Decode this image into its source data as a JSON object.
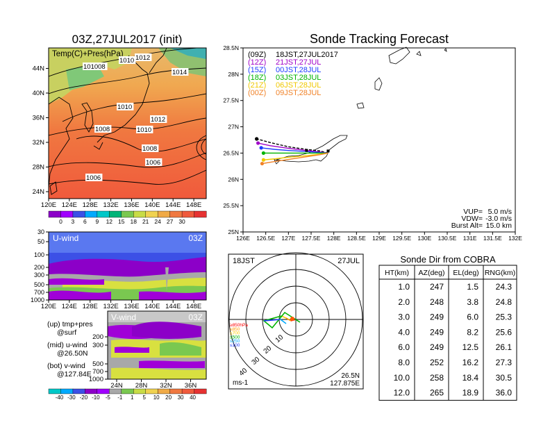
{
  "map_panel": {
    "title": "03Z,27JUL2017 (init)",
    "label": "Temp(C)+Pres(hPa)",
    "x_ticks": [
      "120E",
      "124E",
      "128E",
      "132E",
      "136E",
      "140E",
      "144E",
      "148E"
    ],
    "y_ticks": [
      "24N",
      "28N",
      "32N",
      "36N",
      "40N",
      "44N"
    ],
    "isobar_labels": [
      "101008",
      "1010",
      "1012",
      "1014",
      "1010",
      "1012",
      "1008",
      "1010",
      "1008",
      "1006",
      "1006"
    ],
    "colorbar_ticks": [
      "0",
      "3",
      "6",
      "9",
      "12",
      "15",
      "18",
      "21",
      "24",
      "27",
      "30"
    ]
  },
  "u_panel": {
    "label": "U-wind",
    "time": "03Z",
    "y_ticks": [
      "30",
      "50",
      "100",
      "200",
      "300",
      "500",
      "700",
      "1000"
    ],
    "x_ticks": [
      "120E",
      "124E",
      "128E",
      "132E",
      "136E",
      "140E",
      "144E",
      "148E"
    ]
  },
  "v_panel": {
    "label": "V-wind",
    "time": "03Z",
    "y_ticks": [
      "200",
      "300",
      "500",
      "700",
      "1000"
    ],
    "x_ticks": [
      "24N",
      "28N",
      "32N",
      "36N"
    ]
  },
  "notes": [
    {
      "a": "(up) tmp+pres",
      "b": "@surf"
    },
    {
      "a": "(mid) u-wind",
      "b": "@26.50N"
    },
    {
      "a": "(bot) v-wind",
      "b": "@127.84E"
    }
  ],
  "wind_colorbar_ticks": [
    "-40",
    "-30",
    "-20",
    "-10",
    "-5",
    "-1",
    "1",
    "5",
    "10",
    "20",
    "30",
    "40"
  ],
  "chart_data": {
    "type": "line",
    "title": "Sonde Tracking Forecast",
    "x_ticks": [
      "126E",
      "126.5E",
      "127E",
      "127.5E",
      "128E",
      "128.5E",
      "129E",
      "129.5E",
      "130E",
      "130.5E",
      "131E",
      "131.5E",
      "132E"
    ],
    "y_ticks": [
      "25N",
      "25.5N",
      "26N",
      "26.5N",
      "27N",
      "27.5N",
      "28N",
      "28.5N"
    ],
    "xlim": [
      126,
      132
    ],
    "ylim": [
      25,
      28.5
    ],
    "legend": [
      {
        "name": "(09Z)",
        "text": "18JST,27JUL2017",
        "color": "#000000"
      },
      {
        "name": "(12Z)",
        "text": "21JST,27JUL",
        "color": "#a000c8"
      },
      {
        "name": "(15Z)",
        "text": "00JST,28JUL",
        "color": "#1e3cff"
      },
      {
        "name": "(18Z)",
        "text": "03JST,28JUL",
        "color": "#00b400"
      },
      {
        "name": "(21Z)",
        "text": "06JST,28JUL",
        "color": "#f0c800"
      },
      {
        "name": "(00Z)",
        "text": "09JST,28JUL",
        "color": "#f08228"
      }
    ],
    "series": [
      {
        "name": "(09Z)",
        "color": "#000000",
        "x": [
          127.875,
          127.7,
          127.4,
          127.0,
          126.6,
          126.3
        ],
        "y": [
          26.5,
          26.54,
          26.57,
          26.62,
          26.7,
          26.77
        ]
      },
      {
        "name": "(12Z)",
        "color": "#a000c8",
        "x": [
          127.875,
          127.7,
          127.4,
          127.0,
          126.6,
          126.33
        ],
        "y": [
          26.5,
          26.52,
          26.55,
          26.59,
          26.64,
          26.69
        ]
      },
      {
        "name": "(15Z)",
        "color": "#1e3cff",
        "x": [
          127.875,
          127.7,
          127.4,
          127.0,
          126.7,
          126.4
        ],
        "y": [
          26.5,
          26.51,
          26.53,
          26.55,
          26.57,
          26.6
        ]
      },
      {
        "name": "(18Z)",
        "color": "#00b400",
        "x": [
          127.875,
          127.7,
          127.4,
          127.0,
          126.7,
          126.45
        ],
        "y": [
          26.5,
          26.5,
          26.5,
          26.5,
          26.5,
          26.5
        ]
      },
      {
        "name": "(21Z)",
        "color": "#f0c800",
        "x": [
          127.875,
          127.7,
          127.4,
          127.0,
          126.7,
          126.45
        ],
        "y": [
          26.5,
          26.48,
          26.45,
          26.42,
          26.39,
          26.37
        ]
      },
      {
        "name": "(00Z)",
        "color": "#f08228",
        "x": [
          127.875,
          127.7,
          127.4,
          127.0,
          126.7,
          126.42
        ],
        "y": [
          26.5,
          26.47,
          26.43,
          26.38,
          26.34,
          26.3
        ]
      }
    ],
    "params": [
      {
        "label": "VUP=",
        "value": "5.0 m/s"
      },
      {
        "label": "VDW=",
        "value": "-3.0 m/s"
      },
      {
        "label": "Burst Alt=",
        "value": "15.0 km"
      }
    ]
  },
  "polar": {
    "time_left": "18JST",
    "date_right": "27JUL",
    "unit": "ms-1",
    "lat": "26.5N",
    "lon": "127.875E",
    "ring_labels": [
      "10",
      "20",
      "30",
      "40"
    ],
    "level_legend": [
      {
        "text": "≥850hPa",
        "color": "#ff0000"
      },
      {
        "text": "≤850",
        "color": "#ff9900"
      },
      {
        "text": "≤700",
        "color": "#ffcc00"
      },
      {
        "text": "≤500",
        "color": "#00b400"
      },
      {
        "text": "≤250",
        "color": "#00aaff"
      },
      {
        "text": "≤100",
        "color": "#1e3cff"
      }
    ]
  },
  "table": {
    "title": "Sonde Dir from COBRA",
    "headers": [
      "HT(km)",
      "AZ(deg)",
      "EL(deg)",
      "RNG(km)"
    ],
    "rows": [
      [
        "1.0",
        "247",
        "1.5",
        "24.3"
      ],
      [
        "2.0",
        "248",
        "3.8",
        "24.8"
      ],
      [
        "3.0",
        "249",
        "6.0",
        "25.3"
      ],
      [
        "4.0",
        "249",
        "8.2",
        "25.6"
      ],
      [
        "6.0",
        "249",
        "12.5",
        "26.1"
      ],
      [
        "8.0",
        "252",
        "16.2",
        "27.3"
      ],
      [
        "10.0",
        "258",
        "18.4",
        "30.5"
      ],
      [
        "12.0",
        "265",
        "18.9",
        "36.0"
      ]
    ]
  }
}
